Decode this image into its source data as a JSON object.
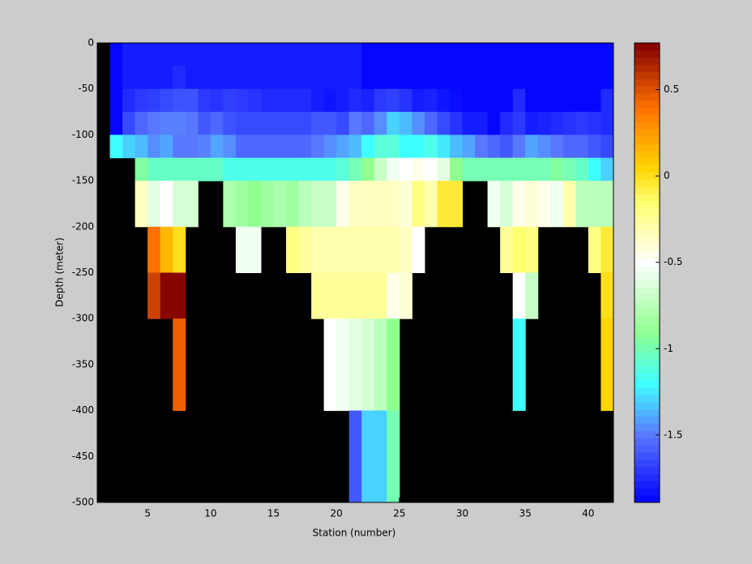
{
  "chart_data": {
    "type": "heatmap",
    "xlabel": "Station (number)",
    "ylabel": "Depth (meter)",
    "xedges": [
      1,
      2,
      3,
      4,
      5,
      6,
      7,
      8,
      9,
      10,
      11,
      12,
      13,
      14,
      15,
      16,
      17,
      18,
      19,
      20,
      21,
      22,
      23,
      24,
      25,
      26,
      27,
      28,
      29,
      30,
      31,
      32,
      33,
      34,
      35,
      36,
      37,
      38,
      39,
      40,
      41,
      42
    ],
    "yedges": [
      0,
      -25,
      -50,
      -75,
      -100,
      -125,
      -150,
      -200,
      -250,
      -300,
      -400,
      -500
    ],
    "values": [
      [
        null,
        -1.87,
        -1.8,
        -1.8,
        -1.8,
        -1.8,
        -1.8,
        -1.8,
        -1.8,
        -1.8,
        -1.8,
        -1.8,
        -1.8,
        -1.8,
        -1.8,
        -1.8,
        -1.8,
        -1.8,
        -1.8,
        -1.8,
        -1.8,
        -1.87,
        -1.87,
        -1.87,
        -1.87,
        -1.87,
        -1.87,
        -1.87,
        -1.87,
        -1.87,
        -1.87,
        -1.87,
        -1.87,
        -1.87,
        -1.87,
        -1.87,
        -1.87,
        -1.87,
        -1.87,
        -1.87,
        -1.87
      ],
      [
        null,
        -1.87,
        -1.8,
        -1.8,
        -1.8,
        -1.8,
        -1.75,
        -1.8,
        -1.8,
        -1.8,
        -1.8,
        -1.8,
        -1.8,
        -1.8,
        -1.8,
        -1.8,
        -1.8,
        -1.8,
        -1.8,
        -1.8,
        -1.8,
        -1.87,
        -1.87,
        -1.87,
        -1.87,
        -1.87,
        -1.87,
        -1.87,
        -1.87,
        -1.87,
        -1.87,
        -1.87,
        -1.87,
        -1.87,
        -1.87,
        -1.87,
        -1.87,
        -1.87,
        -1.87,
        -1.87,
        -1.87
      ],
      [
        null,
        -1.87,
        -1.75,
        -1.7,
        -1.68,
        -1.65,
        -1.62,
        -1.62,
        -1.7,
        -1.72,
        -1.68,
        -1.7,
        -1.72,
        -1.75,
        -1.75,
        -1.75,
        -1.75,
        -1.8,
        -1.82,
        -1.8,
        -1.75,
        -1.78,
        -1.7,
        -1.68,
        -1.72,
        -1.8,
        -1.78,
        -1.82,
        -1.85,
        -1.87,
        -1.87,
        -1.87,
        -1.87,
        -1.75,
        -1.87,
        -1.87,
        -1.87,
        -1.87,
        -1.87,
        -1.87,
        -1.75
      ],
      [
        null,
        -1.87,
        -1.65,
        -1.55,
        -1.5,
        -1.48,
        -1.48,
        -1.5,
        -1.6,
        -1.55,
        -1.62,
        -1.65,
        -1.65,
        -1.65,
        -1.65,
        -1.65,
        -1.65,
        -1.6,
        -1.6,
        -1.65,
        -1.5,
        -1.55,
        -1.45,
        -1.3,
        -1.35,
        -1.45,
        -1.55,
        -1.65,
        -1.72,
        -1.8,
        -1.8,
        -1.87,
        -1.75,
        -1.7,
        -1.8,
        -1.78,
        -1.75,
        -1.72,
        -1.7,
        -1.72,
        -1.75
      ],
      [
        null,
        -1.2,
        -1.3,
        -1.35,
        -1.45,
        -1.4,
        -1.5,
        -1.5,
        -1.48,
        -1.4,
        -1.45,
        -1.55,
        -1.55,
        -1.55,
        -1.55,
        -1.55,
        -1.55,
        -1.5,
        -1.45,
        -1.4,
        -1.35,
        -1.2,
        -1.1,
        -1.1,
        -1.2,
        -1.2,
        -1.15,
        -1.25,
        -1.35,
        -1.4,
        -1.5,
        -1.55,
        -1.6,
        -1.5,
        -1.4,
        -1.45,
        -1.5,
        -1.55,
        -1.55,
        -1.6,
        -1.65
      ],
      [
        null,
        null,
        null,
        -0.95,
        -1.05,
        -1.05,
        -1.05,
        -1.05,
        -1.05,
        -1.05,
        -1.15,
        -1.15,
        -1.15,
        -1.15,
        -1.15,
        -1.15,
        -1.15,
        -1.15,
        -1.15,
        -1.1,
        -1.0,
        -0.9,
        -0.7,
        -0.55,
        -0.5,
        -0.45,
        -0.5,
        -0.6,
        -0.9,
        -1.0,
        -1.0,
        -1.0,
        -1.0,
        -1.0,
        -1.0,
        -1.0,
        -0.95,
        -1.0,
        -1.05,
        -1.2,
        -1.3
      ],
      [
        null,
        null,
        null,
        -0.35,
        -0.6,
        -0.5,
        -0.65,
        -0.65,
        null,
        null,
        -0.8,
        -0.85,
        -0.9,
        -0.85,
        -0.8,
        -0.85,
        -0.75,
        -0.7,
        -0.7,
        -0.45,
        -0.35,
        -0.35,
        -0.35,
        -0.35,
        -0.4,
        -0.2,
        -0.3,
        -0.05,
        -0.05,
        null,
        null,
        -0.55,
        -0.65,
        -0.45,
        -0.4,
        -0.45,
        -0.55,
        -0.3,
        -0.75,
        -0.75,
        -0.75
      ],
      [
        null,
        null,
        null,
        null,
        0.4,
        0.15,
        0.0,
        null,
        null,
        null,
        null,
        -0.55,
        -0.55,
        null,
        null,
        -0.2,
        -0.25,
        -0.3,
        -0.3,
        -0.3,
        -0.3,
        -0.3,
        -0.3,
        -0.3,
        -0.35,
        -0.5,
        null,
        null,
        null,
        null,
        null,
        null,
        -0.25,
        -0.15,
        -0.2,
        null,
        null,
        null,
        null,
        -0.2,
        -0.05
      ],
      [
        null,
        null,
        null,
        null,
        0.55,
        0.75,
        0.75,
        null,
        null,
        null,
        null,
        null,
        null,
        null,
        null,
        null,
        null,
        -0.25,
        -0.25,
        -0.25,
        -0.25,
        -0.25,
        -0.25,
        -0.45,
        -0.4,
        null,
        null,
        null,
        null,
        null,
        null,
        null,
        null,
        -0.5,
        -0.7,
        null,
        null,
        null,
        null,
        null,
        0.0
      ],
      [
        null,
        null,
        null,
        null,
        null,
        null,
        0.45,
        null,
        null,
        null,
        null,
        null,
        null,
        null,
        null,
        null,
        null,
        null,
        -0.5,
        -0.55,
        -0.6,
        -0.65,
        -0.75,
        -0.9,
        null,
        null,
        null,
        null,
        null,
        null,
        null,
        null,
        null,
        -1.2,
        null,
        null,
        null,
        null,
        null,
        null,
        0.05
      ],
      [
        null,
        null,
        null,
        null,
        null,
        null,
        null,
        null,
        null,
        null,
        null,
        null,
        null,
        null,
        null,
        null,
        null,
        null,
        null,
        null,
        -1.6,
        -1.3,
        -1.3,
        -1.0,
        null,
        null,
        null,
        null,
        null,
        null,
        null,
        null,
        null,
        null,
        null,
        null,
        null,
        null,
        null,
        null,
        null
      ]
    ],
    "xlim": [
      1,
      42
    ],
    "ylim": [
      -500,
      0
    ],
    "xticks": [
      5,
      10,
      15,
      20,
      25,
      30,
      35,
      40
    ],
    "yticks": [
      0,
      -50,
      -100,
      -150,
      -200,
      -250,
      -300,
      -350,
      -400,
      -450,
      -500
    ],
    "clim": [
      -1.89,
      0.77
    ],
    "cticks": [
      0.5,
      0,
      -0.5,
      -1,
      -1.5
    ],
    "nan_color": "#000000",
    "colormap": [
      {
        "pos": 0,
        "color": "#0000ff"
      },
      {
        "pos": 0.147,
        "color": "#5a78ff"
      },
      {
        "pos": 0.259,
        "color": "#40ffff"
      },
      {
        "pos": 0.372,
        "color": "#90ff90"
      },
      {
        "pos": 0.523,
        "color": "#ffffff"
      },
      {
        "pos": 0.654,
        "color": "#ffff70"
      },
      {
        "pos": 0.729,
        "color": "#ffd400"
      },
      {
        "pos": 0.861,
        "color": "#ff7000"
      },
      {
        "pos": 1,
        "color": "#800000"
      }
    ]
  }
}
